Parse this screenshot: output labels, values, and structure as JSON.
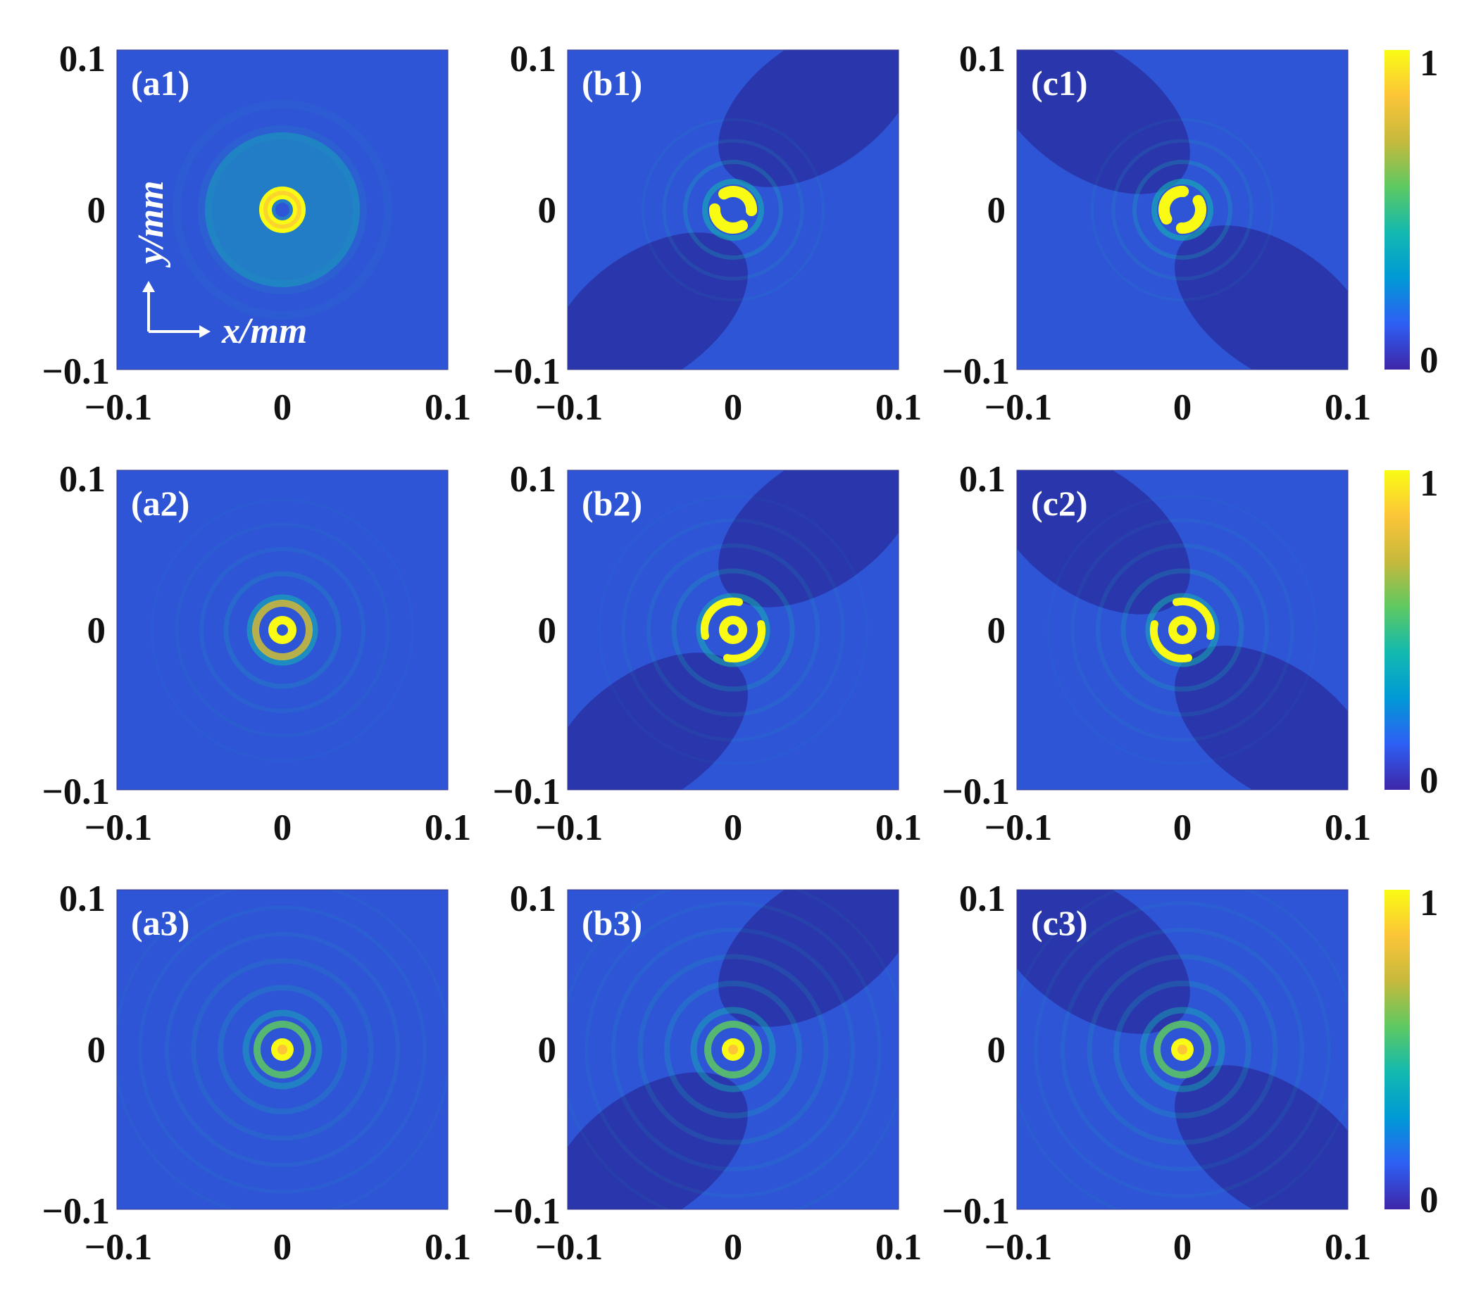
{
  "chart_data": [
    {
      "panel": "(a1)",
      "type": "heatmap",
      "xlim": [
        -0.1,
        0.1
      ],
      "ylim": [
        -0.1,
        0.1
      ],
      "x_ticks": [
        "−0.1",
        "0",
        "0.1"
      ],
      "y_ticks": [
        "−0.1",
        "0",
        "0.1"
      ],
      "xlabel": "x/mm",
      "ylabel": "y/mm",
      "colorbar": {
        "min": 0,
        "max": 1,
        "ticks": [
          "0",
          "1"
        ]
      }
    },
    {
      "panel": "(b1)",
      "type": "heatmap",
      "xlim": [
        -0.1,
        0.1
      ],
      "ylim": [
        -0.1,
        0.1
      ],
      "x_ticks": [
        "−0.1",
        "0",
        "0.1"
      ],
      "y_ticks": [
        "−0.1",
        "0",
        "0.1"
      ]
    },
    {
      "panel": "(c1)",
      "type": "heatmap",
      "xlim": [
        -0.1,
        0.1
      ],
      "ylim": [
        -0.1,
        0.1
      ],
      "x_ticks": [
        "−0.1",
        "0",
        "0.1"
      ],
      "y_ticks": [
        "−0.1",
        "0",
        "0.1"
      ]
    },
    {
      "panel": "(a2)",
      "type": "heatmap",
      "xlim": [
        -0.1,
        0.1
      ],
      "ylim": [
        -0.1,
        0.1
      ],
      "x_ticks": [
        "−0.1",
        "0",
        "0.1"
      ],
      "y_ticks": [
        "−0.1",
        "0",
        "0.1"
      ],
      "colorbar": {
        "min": 0,
        "max": 1,
        "ticks": [
          "0",
          "1"
        ]
      }
    },
    {
      "panel": "(b2)",
      "type": "heatmap",
      "xlim": [
        -0.1,
        0.1
      ],
      "ylim": [
        -0.1,
        0.1
      ],
      "x_ticks": [
        "−0.1",
        "0",
        "0.1"
      ],
      "y_ticks": [
        "−0.1",
        "0",
        "0.1"
      ]
    },
    {
      "panel": "(c2)",
      "type": "heatmap",
      "xlim": [
        -0.1,
        0.1
      ],
      "ylim": [
        -0.1,
        0.1
      ],
      "x_ticks": [
        "−0.1",
        "0",
        "0.1"
      ],
      "y_ticks": [
        "−0.1",
        "0",
        "0.1"
      ]
    },
    {
      "panel": "(a3)",
      "type": "heatmap",
      "xlim": [
        -0.1,
        0.1
      ],
      "ylim": [
        -0.1,
        0.1
      ],
      "x_ticks": [
        "−0.1",
        "0",
        "0.1"
      ],
      "y_ticks": [
        "−0.1",
        "0",
        "0.1"
      ],
      "colorbar": {
        "min": 0,
        "max": 1,
        "ticks": [
          "0",
          "1"
        ]
      }
    },
    {
      "panel": "(b3)",
      "type": "heatmap",
      "xlim": [
        -0.1,
        0.1
      ],
      "ylim": [
        -0.1,
        0.1
      ],
      "x_ticks": [
        "−0.1",
        "0",
        "0.1"
      ],
      "y_ticks": [
        "−0.1",
        "0",
        "0.1"
      ]
    },
    {
      "panel": "(c3)",
      "type": "heatmap",
      "xlim": [
        -0.1,
        0.1
      ],
      "ylim": [
        -0.1,
        0.1
      ],
      "x_ticks": [
        "−0.1",
        "0",
        "0.1"
      ],
      "y_ticks": [
        "−0.1",
        "0",
        "0.1"
      ]
    }
  ],
  "colormap": [
    "#3e26a8",
    "#2e5ff4",
    "#0099d6",
    "#12b9b0",
    "#5dc962",
    "#c6b93c",
    "#fcc538",
    "#f9fb14"
  ],
  "background_color": "#2e55d6"
}
